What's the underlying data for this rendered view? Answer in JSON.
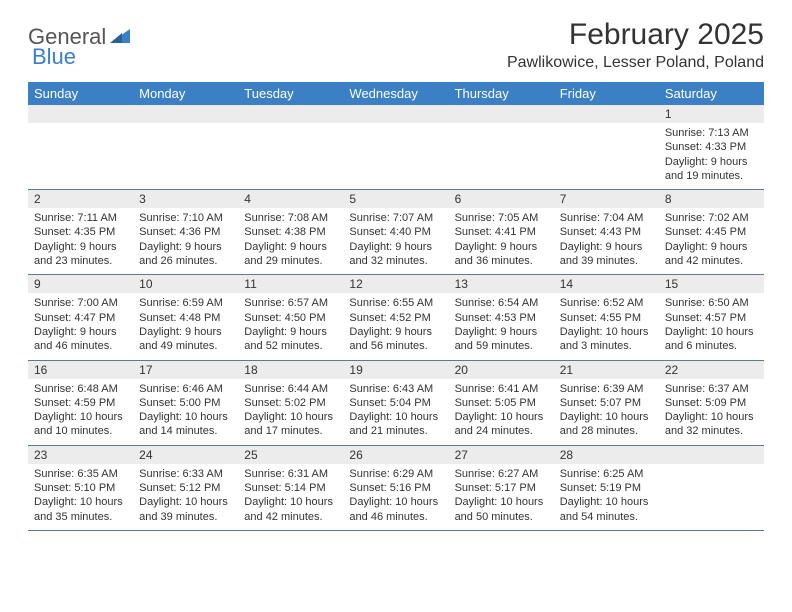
{
  "logo": {
    "text1": "General",
    "text2": "Blue"
  },
  "title": "February 2025",
  "location": "Pawlikowice, Lesser Poland, Poland",
  "colors": {
    "header_bg": "#3b7fc4",
    "header_text": "#ffffff",
    "daybar_bg": "#ececec",
    "border": "#5a7a9a",
    "text": "#333333",
    "logo_gray": "#555555",
    "logo_blue": "#3b7fc4"
  },
  "weekdays": [
    "Sunday",
    "Monday",
    "Tuesday",
    "Wednesday",
    "Thursday",
    "Friday",
    "Saturday"
  ],
  "weeks": [
    [
      null,
      null,
      null,
      null,
      null,
      null,
      {
        "n": "1",
        "sunrise": "Sunrise: 7:13 AM",
        "sunset": "Sunset: 4:33 PM",
        "daylight": "Daylight: 9 hours and 19 minutes."
      }
    ],
    [
      {
        "n": "2",
        "sunrise": "Sunrise: 7:11 AM",
        "sunset": "Sunset: 4:35 PM",
        "daylight": "Daylight: 9 hours and 23 minutes."
      },
      {
        "n": "3",
        "sunrise": "Sunrise: 7:10 AM",
        "sunset": "Sunset: 4:36 PM",
        "daylight": "Daylight: 9 hours and 26 minutes."
      },
      {
        "n": "4",
        "sunrise": "Sunrise: 7:08 AM",
        "sunset": "Sunset: 4:38 PM",
        "daylight": "Daylight: 9 hours and 29 minutes."
      },
      {
        "n": "5",
        "sunrise": "Sunrise: 7:07 AM",
        "sunset": "Sunset: 4:40 PM",
        "daylight": "Daylight: 9 hours and 32 minutes."
      },
      {
        "n": "6",
        "sunrise": "Sunrise: 7:05 AM",
        "sunset": "Sunset: 4:41 PM",
        "daylight": "Daylight: 9 hours and 36 minutes."
      },
      {
        "n": "7",
        "sunrise": "Sunrise: 7:04 AM",
        "sunset": "Sunset: 4:43 PM",
        "daylight": "Daylight: 9 hours and 39 minutes."
      },
      {
        "n": "8",
        "sunrise": "Sunrise: 7:02 AM",
        "sunset": "Sunset: 4:45 PM",
        "daylight": "Daylight: 9 hours and 42 minutes."
      }
    ],
    [
      {
        "n": "9",
        "sunrise": "Sunrise: 7:00 AM",
        "sunset": "Sunset: 4:47 PM",
        "daylight": "Daylight: 9 hours and 46 minutes."
      },
      {
        "n": "10",
        "sunrise": "Sunrise: 6:59 AM",
        "sunset": "Sunset: 4:48 PM",
        "daylight": "Daylight: 9 hours and 49 minutes."
      },
      {
        "n": "11",
        "sunrise": "Sunrise: 6:57 AM",
        "sunset": "Sunset: 4:50 PM",
        "daylight": "Daylight: 9 hours and 52 minutes."
      },
      {
        "n": "12",
        "sunrise": "Sunrise: 6:55 AM",
        "sunset": "Sunset: 4:52 PM",
        "daylight": "Daylight: 9 hours and 56 minutes."
      },
      {
        "n": "13",
        "sunrise": "Sunrise: 6:54 AM",
        "sunset": "Sunset: 4:53 PM",
        "daylight": "Daylight: 9 hours and 59 minutes."
      },
      {
        "n": "14",
        "sunrise": "Sunrise: 6:52 AM",
        "sunset": "Sunset: 4:55 PM",
        "daylight": "Daylight: 10 hours and 3 minutes."
      },
      {
        "n": "15",
        "sunrise": "Sunrise: 6:50 AM",
        "sunset": "Sunset: 4:57 PM",
        "daylight": "Daylight: 10 hours and 6 minutes."
      }
    ],
    [
      {
        "n": "16",
        "sunrise": "Sunrise: 6:48 AM",
        "sunset": "Sunset: 4:59 PM",
        "daylight": "Daylight: 10 hours and 10 minutes."
      },
      {
        "n": "17",
        "sunrise": "Sunrise: 6:46 AM",
        "sunset": "Sunset: 5:00 PM",
        "daylight": "Daylight: 10 hours and 14 minutes."
      },
      {
        "n": "18",
        "sunrise": "Sunrise: 6:44 AM",
        "sunset": "Sunset: 5:02 PM",
        "daylight": "Daylight: 10 hours and 17 minutes."
      },
      {
        "n": "19",
        "sunrise": "Sunrise: 6:43 AM",
        "sunset": "Sunset: 5:04 PM",
        "daylight": "Daylight: 10 hours and 21 minutes."
      },
      {
        "n": "20",
        "sunrise": "Sunrise: 6:41 AM",
        "sunset": "Sunset: 5:05 PM",
        "daylight": "Daylight: 10 hours and 24 minutes."
      },
      {
        "n": "21",
        "sunrise": "Sunrise: 6:39 AM",
        "sunset": "Sunset: 5:07 PM",
        "daylight": "Daylight: 10 hours and 28 minutes."
      },
      {
        "n": "22",
        "sunrise": "Sunrise: 6:37 AM",
        "sunset": "Sunset: 5:09 PM",
        "daylight": "Daylight: 10 hours and 32 minutes."
      }
    ],
    [
      {
        "n": "23",
        "sunrise": "Sunrise: 6:35 AM",
        "sunset": "Sunset: 5:10 PM",
        "daylight": "Daylight: 10 hours and 35 minutes."
      },
      {
        "n": "24",
        "sunrise": "Sunrise: 6:33 AM",
        "sunset": "Sunset: 5:12 PM",
        "daylight": "Daylight: 10 hours and 39 minutes."
      },
      {
        "n": "25",
        "sunrise": "Sunrise: 6:31 AM",
        "sunset": "Sunset: 5:14 PM",
        "daylight": "Daylight: 10 hours and 42 minutes."
      },
      {
        "n": "26",
        "sunrise": "Sunrise: 6:29 AM",
        "sunset": "Sunset: 5:16 PM",
        "daylight": "Daylight: 10 hours and 46 minutes."
      },
      {
        "n": "27",
        "sunrise": "Sunrise: 6:27 AM",
        "sunset": "Sunset: 5:17 PM",
        "daylight": "Daylight: 10 hours and 50 minutes."
      },
      {
        "n": "28",
        "sunrise": "Sunrise: 6:25 AM",
        "sunset": "Sunset: 5:19 PM",
        "daylight": "Daylight: 10 hours and 54 minutes."
      },
      null
    ]
  ]
}
